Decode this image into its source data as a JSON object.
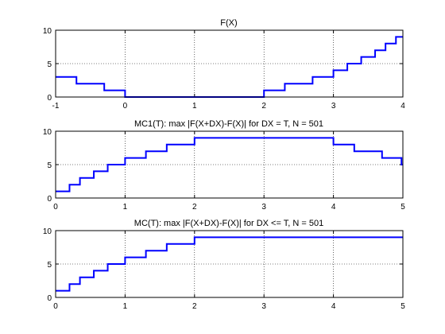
{
  "colors": {
    "line": "#0000ff",
    "axis": "#000000",
    "grid": "#000000",
    "background": "#ffffff"
  },
  "chart_data": [
    {
      "type": "line",
      "title": "F(X)",
      "xlabel": "",
      "ylabel": "",
      "xlim": [
        -1,
        4
      ],
      "ylim": [
        0,
        10
      ],
      "xticks": [
        "-1",
        "0",
        "1",
        "2",
        "3",
        "4"
      ],
      "yticks": [
        "0",
        "5",
        "10"
      ],
      "grid": "on",
      "series": [
        {
          "x": [
            -1,
            -0.7,
            -0.7,
            -0.3,
            -0.3,
            0,
            0,
            2,
            2,
            2.3,
            2.3,
            2.7,
            2.7,
            3,
            3,
            3.2,
            3.2,
            3.4,
            3.4,
            3.6,
            3.6,
            3.75,
            3.75,
            3.9,
            3.9,
            4
          ],
          "y": [
            3,
            3,
            2,
            2,
            1,
            1,
            0,
            0,
            1,
            1,
            2,
            2,
            3,
            3,
            4,
            4,
            5,
            5,
            6,
            6,
            7,
            7,
            8,
            8,
            9,
            9
          ]
        }
      ]
    },
    {
      "type": "line",
      "title": "MC1(T): max |F(X+DX)-F(X)| for DX = T, N = 501",
      "xlabel": "",
      "ylabel": "",
      "xlim": [
        0,
        5
      ],
      "ylim": [
        0,
        10
      ],
      "xticks": [
        "0",
        "1",
        "2",
        "3",
        "4",
        "5"
      ],
      "yticks": [
        "0",
        "5",
        "10"
      ],
      "grid": "on",
      "series": [
        {
          "x": [
            0,
            0.2,
            0.2,
            0.35,
            0.35,
            0.55,
            0.55,
            0.75,
            0.75,
            1,
            1,
            1.3,
            1.3,
            1.6,
            1.6,
            2,
            2,
            4,
            4,
            4.3,
            4.3,
            4.7,
            4.7,
            4.98,
            4.98,
            5
          ],
          "y": [
            1,
            1,
            2,
            2,
            3,
            3,
            4,
            4,
            5,
            5,
            6,
            6,
            7,
            7,
            8,
            8,
            9,
            9,
            8,
            8,
            7,
            7,
            6,
            6,
            5,
            5
          ]
        }
      ]
    },
    {
      "type": "line",
      "title": "MC(T): max |F(X+DX)-F(X)| for DX <= T, N = 501",
      "xlabel": "",
      "ylabel": "",
      "xlim": [
        0,
        5
      ],
      "ylim": [
        0,
        10
      ],
      "xticks": [
        "0",
        "1",
        "2",
        "3",
        "4",
        "5"
      ],
      "yticks": [
        "0",
        "5",
        "10"
      ],
      "grid": "on",
      "series": [
        {
          "x": [
            0,
            0.2,
            0.2,
            0.35,
            0.35,
            0.55,
            0.55,
            0.75,
            0.75,
            1,
            1,
            1.3,
            1.3,
            1.6,
            1.6,
            2,
            2,
            5
          ],
          "y": [
            1,
            1,
            2,
            2,
            3,
            3,
            4,
            4,
            5,
            5,
            6,
            6,
            7,
            7,
            8,
            8,
            9,
            9
          ]
        }
      ]
    }
  ]
}
